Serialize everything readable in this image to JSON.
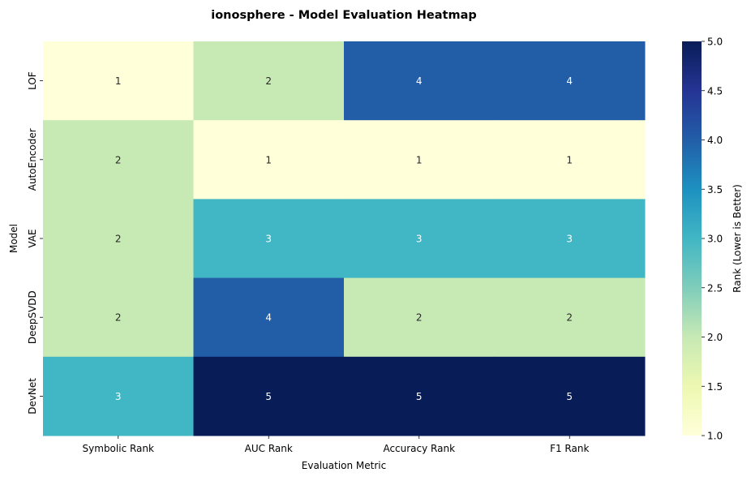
{
  "chart_data": {
    "type": "heatmap",
    "title": "ionosphere - Model Evaluation Heatmap",
    "xlabel": "Evaluation Metric",
    "ylabel": "Model",
    "x_categories": [
      "Symbolic Rank",
      "AUC Rank",
      "Accuracy Rank",
      "F1 Rank"
    ],
    "y_categories": [
      "LOF",
      "AutoEncoder",
      "VAE",
      "DeepSVDD",
      "DevNet"
    ],
    "values": [
      [
        1,
        2,
        4,
        4
      ],
      [
        2,
        1,
        1,
        1
      ],
      [
        2,
        3,
        3,
        3
      ],
      [
        2,
        4,
        2,
        2
      ],
      [
        3,
        5,
        5,
        5
      ]
    ],
    "colorbar": {
      "label": "Rank (Lower is Better)",
      "range": [
        1.0,
        5.0
      ],
      "ticks": [
        "1.0",
        "1.5",
        "2.0",
        "2.5",
        "3.0",
        "3.5",
        "4.0",
        "4.5",
        "5.0"
      ],
      "colormap": "YlGnBu"
    },
    "cell_colors": {
      "1": "#ffffd9",
      "2": "#c7e9b4",
      "3": "#41b6c4",
      "4": "#225ea8",
      "5": "#081d58"
    },
    "annotation_colors": {
      "light_bg": "#262626",
      "dark_bg": "#ffffff"
    }
  }
}
